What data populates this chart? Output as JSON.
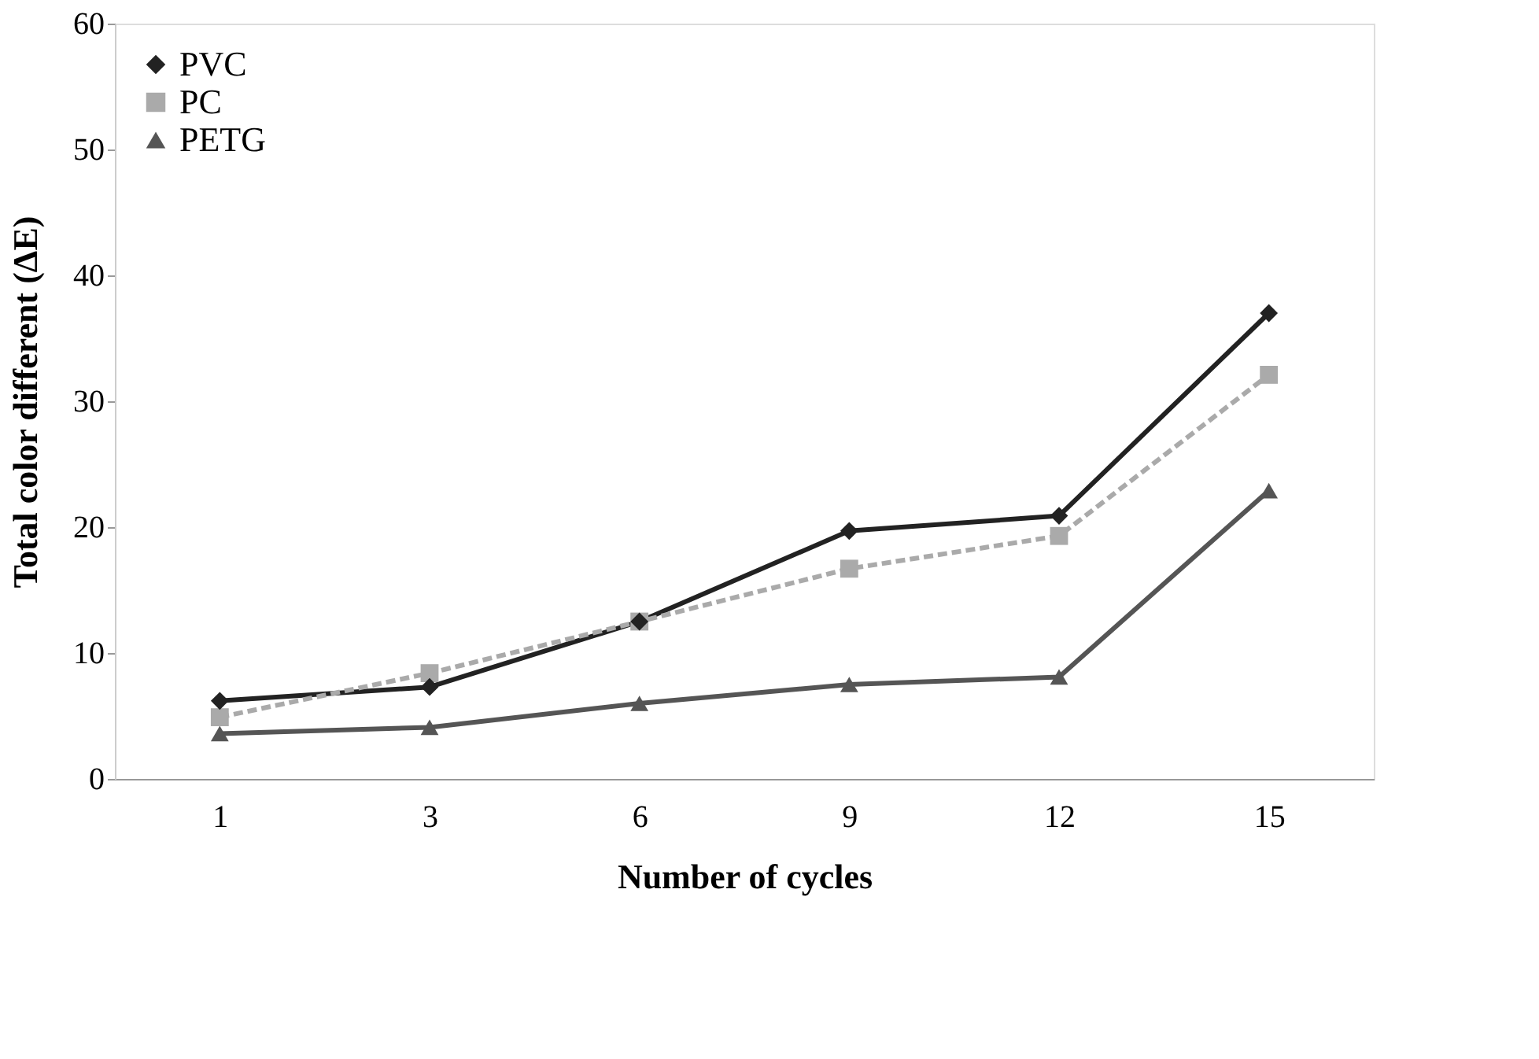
{
  "chart_data": {
    "type": "line",
    "xlabel": "Number of cycles",
    "ylabel": "Total color different (ΔE)",
    "categories": [
      "1",
      "3",
      "6",
      "9",
      "12",
      "15"
    ],
    "series": [
      {
        "name": "PVC",
        "color": "#222222",
        "marker": "diamond",
        "line_style": "solid",
        "values": [
          6.2,
          7.3,
          12.5,
          19.7,
          20.9,
          37.0
        ]
      },
      {
        "name": "PC",
        "color": "#aaaaaa",
        "marker": "square",
        "line_style": "dashed",
        "values": [
          4.9,
          8.4,
          12.5,
          16.7,
          19.3,
          32.1
        ]
      },
      {
        "name": "PETG",
        "color": "#555555",
        "marker": "triangle",
        "line_style": "solid",
        "values": [
          3.6,
          4.1,
          6.0,
          7.5,
          8.1,
          22.9
        ]
      }
    ],
    "ylim": [
      0,
      60
    ],
    "yticks": [
      0,
      10,
      20,
      30,
      40,
      50,
      60
    ],
    "grid": false,
    "legend": "top left"
  }
}
